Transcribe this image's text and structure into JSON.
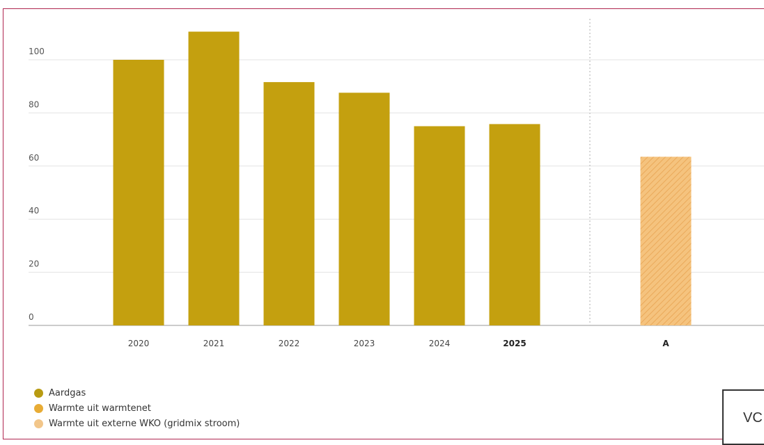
{
  "chart_data": {
    "type": "bar",
    "categories": [
      "2020",
      "2021",
      "2022",
      "2023",
      "2024",
      "2025",
      "A"
    ],
    "highlight_category": "2025",
    "values": [
      100,
      110.6,
      91.6,
      87.6,
      75,
      75.8,
      63.5
    ],
    "bar_colors": [
      "#c4a00f",
      "#c4a00f",
      "#c4a00f",
      "#c4a00f",
      "#c4a00f",
      "#c4a00f",
      "#f5c37e"
    ],
    "hatched": [
      false,
      false,
      false,
      false,
      false,
      false,
      true
    ],
    "yticks": [
      0,
      20,
      40,
      60,
      80,
      100
    ],
    "ylim": [
      0,
      115
    ],
    "grid": true,
    "divider_before_category": "A",
    "legend": {
      "position": "bottom-left",
      "items": [
        {
          "label": "Aardgas",
          "color": "#b89b12"
        },
        {
          "label": "Warmte uit warmtenet",
          "color": "#e8ac35"
        },
        {
          "label": "Warmte uit externe WKO (gridmix stroom)",
          "color": "#f2c68a"
        }
      ]
    }
  },
  "corner_label": "VC"
}
